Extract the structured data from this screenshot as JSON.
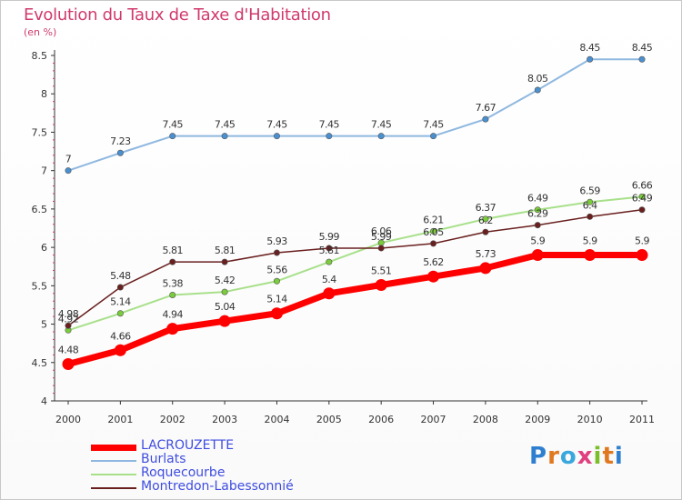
{
  "title": "Evolution du Taux de Taxe d'Habitation",
  "subtitle": "(en %)",
  "logo": {
    "text": "Proxiti",
    "letters": [
      "P",
      "r",
      "o",
      "x",
      "i",
      "t",
      "i"
    ],
    "colors": [
      "#2f7fd0",
      "#e07820",
      "#3aa7dd",
      "#e04080",
      "#7abf2a",
      "#e07820",
      "#2f7fd0"
    ]
  },
  "chart_data": {
    "type": "line",
    "title": "Evolution du Taux de Taxe d'Habitation",
    "ylabel": "(en %)",
    "xlabel": "",
    "ylim": [
      4,
      8.5
    ],
    "grid": false,
    "legend_position": "bottom-left",
    "x": [
      "2000",
      "2001",
      "2002",
      "2003",
      "2004",
      "2005",
      "2006",
      "2007",
      "2008",
      "2009",
      "2010",
      "2011"
    ],
    "y_ticks": [
      "4",
      "4.5",
      "5",
      "5.5",
      "6",
      "6.5",
      "7",
      "7.5",
      "8",
      "8.5"
    ],
    "series": [
      {
        "name": "LACROUZETTE",
        "color": "#ff0000",
        "width": 7,
        "values": [
          4.48,
          4.66,
          4.94,
          5.04,
          5.14,
          5.4,
          5.51,
          5.62,
          5.73,
          5.9,
          5.9,
          5.9
        ],
        "labels": [
          "4.48",
          "4.66",
          "4.94",
          "5.04",
          "5.14",
          "5.4",
          "5.51",
          "5.62",
          "5.73",
          "5.9",
          "5.9",
          "5.9"
        ]
      },
      {
        "name": "Burlats",
        "color": "#8fb8e0",
        "width": 2,
        "values": [
          7.0,
          7.23,
          7.45,
          7.45,
          7.45,
          7.45,
          7.45,
          7.45,
          7.67,
          8.05,
          8.45,
          8.45
        ],
        "labels": [
          "7",
          "7.23",
          "7.45",
          "7.45",
          "7.45",
          "7.45",
          "7.45",
          "7.45",
          "7.67",
          "8.05",
          "8.45",
          "8.45"
        ]
      },
      {
        "name": "Roquecourbe",
        "color": "#a8e08a",
        "width": 2,
        "values": [
          4.92,
          5.14,
          5.38,
          5.42,
          5.56,
          5.81,
          6.06,
          6.21,
          6.37,
          6.49,
          6.59,
          6.66
        ],
        "labels": [
          "4.92",
          "5.14",
          "5.38",
          "5.42",
          "5.56",
          "5.81",
          "6.06",
          "6.21",
          "6.37",
          "6.49",
          "6.59",
          "6.66"
        ]
      },
      {
        "name": "Montredon-Labessonnié",
        "color": "#6a1f1f",
        "width": 1.5,
        "values": [
          4.98,
          5.48,
          5.81,
          5.81,
          5.93,
          5.99,
          5.99,
          6.05,
          6.2,
          6.29,
          6.4,
          6.49
        ],
        "labels": [
          "4.98",
          "5.48",
          "5.81",
          "5.81",
          "5.93",
          "5.99",
          "5.99",
          "6.05",
          "6.2",
          "6.29",
          "6.4",
          "6.49"
        ]
      }
    ]
  }
}
